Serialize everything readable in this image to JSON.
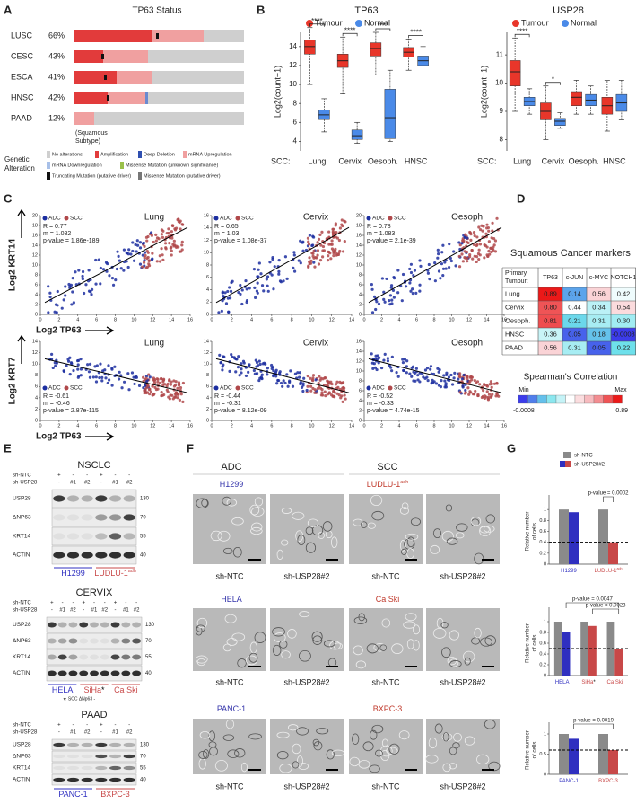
{
  "figure": {
    "A": {
      "label": "A",
      "title": "TP63 Status",
      "rows": [
        [
          "LUSC",
          "66%"
        ],
        [
          "CESC",
          "43%"
        ],
        [
          "ESCA",
          "41%"
        ],
        [
          "HNSC",
          "42%"
        ],
        [
          "PAAD",
          "12%"
        ]
      ],
      "note": [
        "(Squamous",
        "Subtype)"
      ],
      "legend_title": [
        "Genetic",
        "Alteration"
      ],
      "legend": [
        "No alterations",
        "Amplification",
        "Deep Deletion",
        "mRNA Upregulation",
        "mRNA Downregulation",
        "Missense Mutation (unknown significance)",
        "Truncating Mutation (putative driver)",
        "Missense Mutation (putative driver)"
      ]
    },
    "B": {
      "label": "B",
      "legend": [
        "Tumour",
        "Normal"
      ],
      "ylabel": "Log2(count+1)",
      "xlabel": "SCC:",
      "categories": [
        "Lung",
        "Cervix",
        "Oesoph.",
        "HNSC"
      ],
      "charts": [
        {
          "title": "TP63",
          "ylim": [
            3,
            15.5
          ],
          "yticks": [
            4,
            6,
            8,
            10,
            12,
            14
          ],
          "sig": [
            "****",
            "****",
            "****",
            "****"
          ],
          "tumour": [
            [
              10,
              13.2,
              14,
              14.7,
              16
            ],
            [
              9,
              11.8,
              12.5,
              13.2,
              15
            ],
            [
              11,
              13,
              13.8,
              14.4,
              15.5
            ],
            [
              11.5,
              12.9,
              13.4,
              13.9,
              14.8
            ]
          ],
          "normal": [
            [
              5,
              6.3,
              6.8,
              7.3,
              8.5
            ],
            [
              3.8,
              4.2,
              4.6,
              5.2,
              6
            ],
            [
              4,
              4.3,
              6.5,
              9.5,
              11.5
            ],
            [
              11,
              12,
              12.5,
              13,
              14
            ]
          ]
        },
        {
          "title": "USP28",
          "ylim": [
            7.6,
            11.8
          ],
          "yticks": [
            8,
            9,
            10,
            11
          ],
          "sig": [
            "****",
            "*"
          ],
          "tumour": [
            [
              9,
              9.9,
              10.4,
              10.8,
              11.6
            ],
            [
              8,
              8.7,
              9,
              9.3,
              9.9
            ],
            [
              8.9,
              9.2,
              9.5,
              9.7,
              10.1
            ],
            [
              8.3,
              8.9,
              9.2,
              9.5,
              10.1
            ]
          ],
          "normal": [
            [
              8.9,
              9.2,
              9.35,
              9.5,
              9.8
            ],
            [
              8.4,
              8.5,
              8.65,
              8.75,
              8.95
            ],
            [
              8.9,
              9.2,
              9.4,
              9.6,
              9.9
            ],
            [
              8.7,
              9,
              9.3,
              9.6,
              10.1
            ]
          ]
        }
      ]
    },
    "C": {
      "label": "C",
      "legend": [
        "ADC",
        "SCC"
      ],
      "xlabel": "Log2 TP63",
      "ylabels": [
        "Log2 KRT14",
        "Log2 KRT7"
      ],
      "rows": [
        [
          {
            "title": "Lung",
            "stats": [
              "R = 0.77",
              "m = 1.082",
              "p-value = 1.86e-189"
            ],
            "xticks": [
              0,
              2,
              4,
              6,
              8,
              10,
              12,
              14,
              16
            ],
            "yticks": [
              0,
              2,
              4,
              6,
              8,
              10,
              12,
              14,
              16,
              18,
              20
            ]
          },
          {
            "title": "Cervix",
            "stats": [
              "R = 0.65",
              "m = 1.03",
              "p-value = 1.08e-37"
            ],
            "xticks": [
              0,
              2,
              4,
              6,
              8,
              10,
              12,
              14
            ],
            "yticks": [
              0,
              2,
              4,
              6,
              8,
              10,
              12,
              14,
              16
            ]
          },
          {
            "title": "Oesoph.",
            "stats": [
              "R = 0.78",
              "m = 1.083",
              "p-value = 2.1e-39"
            ],
            "xticks": [
              0,
              2,
              4,
              6,
              8,
              10,
              12,
              14,
              16
            ],
            "yticks": [
              0,
              2,
              4,
              6,
              8,
              10,
              12,
              14,
              16,
              18,
              20
            ]
          }
        ],
        [
          {
            "title": "Lung",
            "stats": [
              "R = -0.61",
              "m = -0.46",
              "p-value = 2.87e-115"
            ],
            "xticks": [
              0,
              2,
              4,
              6,
              8,
              10,
              12,
              14,
              16
            ],
            "yticks": [
              0,
              2,
              4,
              6,
              8,
              10,
              12,
              14
            ]
          },
          {
            "title": "Cervix",
            "stats": [
              "R = -0.44",
              "m = -0.31",
              "p-value = 8.12e-09"
            ],
            "xticks": [
              0,
              2,
              4,
              6,
              8,
              10,
              12,
              14
            ],
            "yticks": [
              0,
              2,
              4,
              6,
              8,
              10,
              12,
              14
            ]
          },
          {
            "title": "Oesoph.",
            "stats": [
              "R = -0.52",
              "m = -0.33",
              "p-value = 4.74e-15"
            ],
            "xticks": [
              0,
              2,
              4,
              6,
              8,
              10,
              12,
              14,
              16
            ],
            "yticks": [
              0,
              2,
              4,
              6,
              8,
              10,
              12,
              14,
              16
            ]
          }
        ]
      ]
    },
    "D": {
      "label": "D",
      "title": "Squamous Cancer markers",
      "header_label": [
        "Primary",
        "Tumour:"
      ],
      "header": [
        "TP63",
        "c-JUN",
        "c-MYC",
        "NOTCH1"
      ],
      "rows": [
        [
          "Lung",
          "0.89",
          "0.14",
          "0.56",
          "0.42"
        ],
        [
          "Cervix",
          "0.80",
          "0.44",
          "0.34",
          "0.54"
        ],
        [
          "Oesoph.",
          "0.81",
          "0.21",
          "0.31",
          "0.30"
        ],
        [
          "HNSC",
          "0.36",
          "0.05",
          "0.18",
          "-0.0008"
        ],
        [
          "PAAD",
          "0.56",
          "0.31",
          "0.05",
          "0.22"
        ]
      ],
      "scale": {
        "title": "Spearman's Correlation",
        "min": "Min",
        "max": "Max",
        "min_value": "-0.0008",
        "max_value": "0.89"
      }
    },
    "E": {
      "label": "E",
      "blots": [
        {
          "title": "NSCLC",
          "rows": [
            "sh-NTC",
            "sh-USP28"
          ],
          "lanes": [
            [
              "+",
              "-",
              "-",
              "+",
              "-",
              "-"
            ],
            [
              "-",
              "#1",
              "#2",
              "-",
              "#1",
              "#2"
            ]
          ],
          "proteins": [
            "USP28",
            "ΔNP63",
            "KRT14",
            "ACTIN"
          ],
          "mw": [
            "130",
            "70",
            "55",
            "40"
          ],
          "cells": [
            {
              "name": "H1299"
            },
            {
              "name": "LUDLU-1",
              "sup": "adh"
            }
          ]
        },
        {
          "title": "CERVIX",
          "rows": [
            "sh-NTC",
            "sh-USP28"
          ],
          "lanes": [
            [
              "+",
              "-",
              "-",
              "+",
              "-",
              "-",
              "+",
              "-",
              "-"
            ],
            [
              "-",
              "#1",
              "#2",
              "-",
              "#1",
              "#2",
              "-",
              "#1",
              "#2"
            ]
          ],
          "proteins": [
            "USP28",
            "ΔNP63",
            "KRT14",
            "ACTIN"
          ],
          "mw": [
            "130",
            "70",
            "55",
            "40"
          ],
          "cells": [
            {
              "name": "HELA"
            },
            {
              "name": "SiHa",
              "mark": "*"
            },
            {
              "name": "Ca Ski"
            }
          ],
          "note": "★ SCC ΔNp63 -"
        },
        {
          "title": "PAAD",
          "rows": [
            "sh-NTC",
            "sh-USP28"
          ],
          "lanes": [
            [
              "+",
              "-",
              "-",
              "+",
              "-",
              "-"
            ],
            [
              "-",
              "#1",
              "#2",
              "-",
              "#1",
              "#2"
            ]
          ],
          "proteins": [
            "USP28",
            "ΔNP63",
            "KRT14",
            "ACTIN"
          ],
          "mw": [
            "130",
            "70",
            "55",
            "40"
          ],
          "cells": [
            {
              "name": "PANC-1"
            },
            {
              "name": "BXPC-3"
            }
          ]
        }
      ]
    },
    "F": {
      "label": "F",
      "groups": [
        "ADC",
        "SCC"
      ],
      "rows": [
        [
          {
            "name": "H1299"
          },
          {
            "name": "LUDLU-1",
            "sup": "adh"
          }
        ],
        [
          {
            "name": "HELA"
          },
          {
            "name": "Ca Ski"
          }
        ],
        [
          {
            "name": "PANC-1"
          },
          {
            "name": "BXPC-3"
          }
        ]
      ],
      "captions": [
        "sh-NTC",
        "sh-USP28#2"
      ]
    },
    "G": {
      "label": "G",
      "legend": [
        "sh-NTC",
        "sh-USP28#2"
      ],
      "ylabel": [
        "Relative number",
        "of cells"
      ],
      "ylim": [
        0,
        1.2
      ],
      "charts": [
        {
          "categories": [
            {
              "name": "H1299"
            },
            {
              "name": "LUDLU-1",
              "sup": "adh"
            }
          ],
          "ntc": [
            1,
            1
          ],
          "usp": [
            0.95,
            0.4
          ],
          "usp_colors": [
            "#2f2fc0",
            "#c84848"
          ],
          "cutoff": 0.4,
          "pvalues": [
            "p-value = 0.0002"
          ],
          "yticks": [
            0,
            0.2,
            0.4,
            0.6,
            0.8,
            1
          ]
        },
        {
          "categories": [
            {
              "name": "HELA"
            },
            {
              "name": "SiHa",
              "mark": "*"
            },
            {
              "name": "Ca Ski"
            }
          ],
          "ntc": [
            1,
            1,
            1
          ],
          "usp": [
            0.8,
            0.92,
            0.5
          ],
          "usp_colors": [
            "#2f2fc0",
            "#c84848",
            "#c84848"
          ],
          "cutoff": 0.5,
          "pvalues": [
            "p-value = 0.0047",
            "p-value = 0.0023"
          ],
          "yticks": [
            0,
            0.2,
            0.4,
            0.6,
            0.8,
            1
          ]
        },
        {
          "categories": [
            {
              "name": "PANC-1"
            },
            {
              "name": "BXPC-3"
            }
          ],
          "ntc": [
            1,
            1
          ],
          "usp": [
            0.88,
            0.6
          ],
          "usp_colors": [
            "#2f2fc0",
            "#c84848"
          ],
          "cutoff": 0.6,
          "pvalues": [
            "p-value = 0.0019"
          ],
          "yticks": [
            0,
            0.5,
            1
          ]
        }
      ]
    }
  }
}
